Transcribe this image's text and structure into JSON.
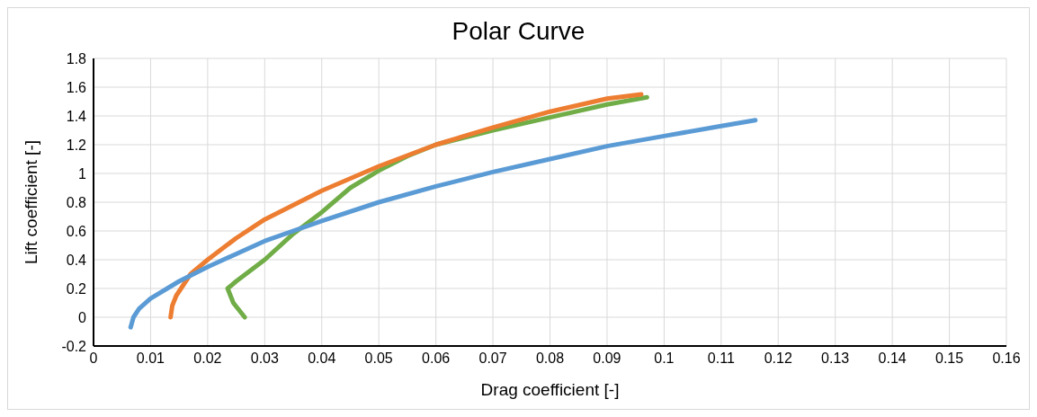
{
  "chart_data": {
    "type": "line",
    "title": "Polar Curve",
    "xlabel": "Drag coefficient [-]",
    "ylabel": "Lift coefficient [-]",
    "xlim": [
      0,
      0.16
    ],
    "xticks": [
      0,
      0.01,
      0.02,
      0.03,
      0.04,
      0.05,
      0.06,
      0.07,
      0.08,
      0.09,
      0.1,
      0.11,
      0.12,
      0.13,
      0.14,
      0.15,
      0.16
    ],
    "ylim": [
      -0.2,
      1.8
    ],
    "yticks": [
      -0.2,
      0,
      0.2,
      0.4,
      0.6,
      0.8,
      1,
      1.2,
      1.4,
      1.6,
      1.8
    ],
    "grid": true,
    "legend": false,
    "marker": "none",
    "line_style": "solid",
    "series": [
      {
        "color": "#70ad47",
        "x": [
          0.0265,
          0.0245,
          0.0235,
          0.025,
          0.03,
          0.035,
          0.04,
          0.045,
          0.05,
          0.055,
          0.06,
          0.07,
          0.08,
          0.09,
          0.097
        ],
        "values": [
          0,
          0.1,
          0.2,
          0.25,
          0.4,
          0.58,
          0.73,
          0.9,
          1.02,
          1.12,
          1.2,
          1.3,
          1.39,
          1.48,
          1.53
        ]
      },
      {
        "color": "#ed7d31",
        "x": [
          0.0135,
          0.0138,
          0.0145,
          0.017,
          0.02,
          0.025,
          0.03,
          0.04,
          0.05,
          0.06,
          0.07,
          0.08,
          0.09,
          0.096
        ],
        "values": [
          0,
          0.08,
          0.15,
          0.3,
          0.4,
          0.55,
          0.68,
          0.88,
          1.05,
          1.2,
          1.32,
          1.43,
          1.52,
          1.55
        ]
      },
      {
        "color": "#5b9bd5",
        "x": [
          0.0065,
          0.007,
          0.008,
          0.01,
          0.015,
          0.02,
          0.03,
          0.04,
          0.05,
          0.06,
          0.07,
          0.08,
          0.09,
          0.1,
          0.11,
          0.116
        ],
        "values": [
          -0.07,
          0,
          0.06,
          0.13,
          0.25,
          0.35,
          0.53,
          0.67,
          0.8,
          0.91,
          1.01,
          1.1,
          1.19,
          1.26,
          1.33,
          1.37
        ]
      }
    ]
  }
}
